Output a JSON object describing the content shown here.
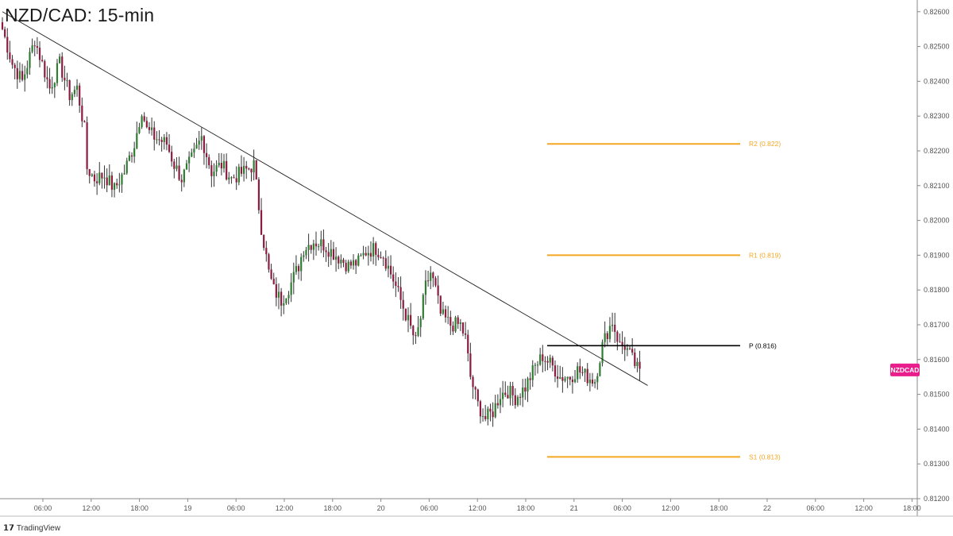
{
  "title": "NZD/CAD: 15-min",
  "branding": {
    "name": "TradingView",
    "icon": "tradingview-logo-icon"
  },
  "symbol_tag": {
    "label": "NZDCAD",
    "price": 0.8157,
    "color": "#e91e8c"
  },
  "colors": {
    "up": "#2e7d32",
    "down": "#8b1b3f",
    "wick": "#333333",
    "level": "#f5a623",
    "pivot": "#000000",
    "trend": "#222222"
  },
  "chart_data": {
    "type": "candlestick",
    "title": "NZD/CAD: 15-min",
    "ylim": [
      0.812,
      0.8262
    ],
    "y_ticks": [
      "0.82600",
      "0.82500",
      "0.82400",
      "0.82300",
      "0.82200",
      "0.82100",
      "0.82000",
      "0.81900",
      "0.81800",
      "0.81700",
      "0.81600",
      "0.81500",
      "0.81400",
      "0.81300",
      "0.81200"
    ],
    "x_ticks": [
      "06:00",
      "12:00",
      "18:00",
      "19",
      "06:00",
      "12:00",
      "18:00",
      "20",
      "06:00",
      "12:00",
      "18:00",
      "21",
      "06:00",
      "12:00",
      "18:00",
      "22",
      "06:00",
      "12:00",
      "18:00"
    ],
    "price_path": [
      [
        0,
        0.8255
      ],
      [
        4,
        0.8245
      ],
      [
        8,
        0.824
      ],
      [
        13,
        0.8252
      ],
      [
        16,
        0.8245
      ],
      [
        19,
        0.8238
      ],
      [
        23,
        0.8245
      ],
      [
        27,
        0.8236
      ],
      [
        30,
        0.8238
      ],
      [
        33,
        0.8226
      ],
      [
        34,
        0.8215
      ],
      [
        37,
        0.8212
      ],
      [
        41,
        0.8213
      ],
      [
        45,
        0.8209
      ],
      [
        49,
        0.8214
      ],
      [
        53,
        0.8222
      ],
      [
        56,
        0.8232
      ],
      [
        58,
        0.8226
      ],
      [
        61,
        0.8224
      ],
      [
        66,
        0.8222
      ],
      [
        69,
        0.8216
      ],
      [
        72,
        0.8212
      ],
      [
        77,
        0.8219
      ],
      [
        80,
        0.8224
      ],
      [
        84,
        0.8214
      ],
      [
        88,
        0.8216
      ],
      [
        92,
        0.8212
      ],
      [
        97,
        0.8214
      ],
      [
        101,
        0.8216
      ],
      [
        104,
        0.8198
      ],
      [
        107,
        0.8185
      ],
      [
        109,
        0.818
      ],
      [
        112,
        0.8177
      ],
      [
        116,
        0.8182
      ],
      [
        119,
        0.8187
      ],
      [
        121,
        0.8192
      ],
      [
        125,
        0.8194
      ],
      [
        129,
        0.8193
      ],
      [
        134,
        0.819
      ],
      [
        139,
        0.8187
      ],
      [
        143,
        0.8188
      ],
      [
        146,
        0.8191
      ],
      [
        150,
        0.8192
      ],
      [
        153,
        0.819
      ],
      [
        157,
        0.8183
      ],
      [
        160,
        0.8177
      ],
      [
        163,
        0.8171
      ],
      [
        166,
        0.8165
      ],
      [
        168,
        0.8172
      ],
      [
        170,
        0.8181
      ],
      [
        172,
        0.8185
      ],
      [
        174,
        0.818
      ],
      [
        176,
        0.8173
      ],
      [
        180,
        0.817
      ],
      [
        184,
        0.817
      ],
      [
        186,
        0.8166
      ],
      [
        188,
        0.8155
      ],
      [
        191,
        0.8147
      ],
      [
        194,
        0.8143
      ],
      [
        197,
        0.8145
      ],
      [
        200,
        0.815
      ],
      [
        203,
        0.8151
      ],
      [
        206,
        0.8149
      ],
      [
        210,
        0.8152
      ],
      [
        214,
        0.8158
      ],
      [
        217,
        0.8161
      ],
      [
        221,
        0.8158
      ],
      [
        224,
        0.8155
      ],
      [
        228,
        0.8155
      ],
      [
        231,
        0.8157
      ],
      [
        235,
        0.8155
      ],
      [
        238,
        0.8154
      ],
      [
        241,
        0.8164
      ],
      [
        243,
        0.8168
      ],
      [
        245,
        0.8171
      ],
      [
        248,
        0.8164
      ],
      [
        250,
        0.8164
      ],
      [
        253,
        0.816
      ],
      [
        256,
        0.8156
      ]
    ],
    "trendline": [
      [
        0.826,
        0
      ],
      [
        0.8153,
        256
      ]
    ],
    "levels": [
      {
        "label": "R2 (0.822)",
        "value": 0.8222
      },
      {
        "label": "R1 (0.819)",
        "value": 0.819
      },
      {
        "label": "P (0.816)",
        "value": 0.8164
      },
      {
        "label": "S1 (0.813)",
        "value": 0.8132
      }
    ]
  }
}
